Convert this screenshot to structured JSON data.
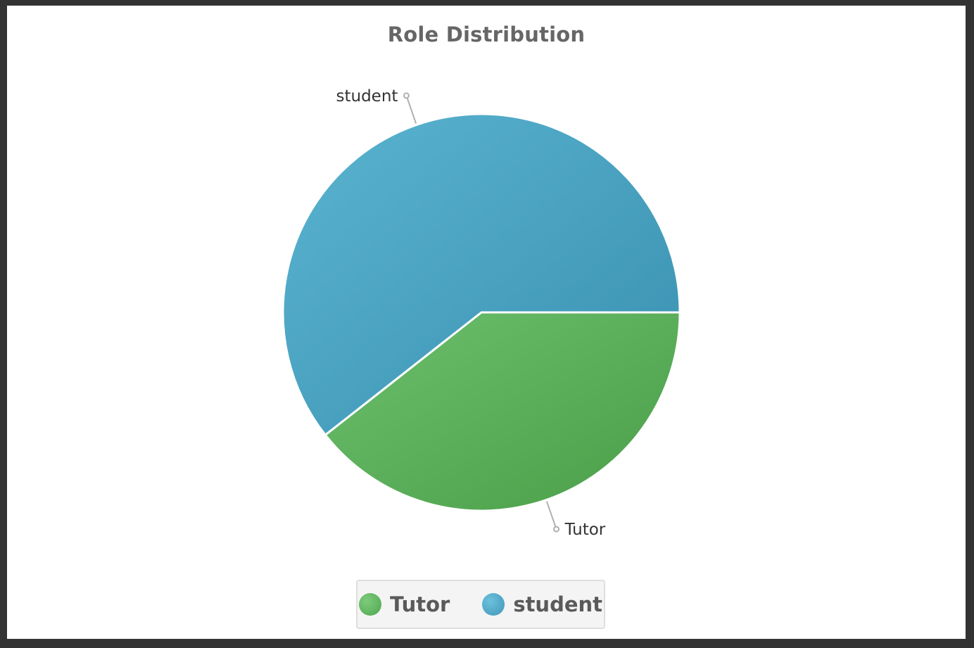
{
  "chart_data": {
    "type": "pie",
    "title": "Role Distribution",
    "slices": [
      {
        "label": "Tutor",
        "value": 39.4,
        "color": "#5aaf5b"
      },
      {
        "label": "student",
        "value": 60.6,
        "color": "#47a1c1"
      }
    ],
    "legend": {
      "position": "bottom",
      "entries": [
        "Tutor",
        "student"
      ]
    }
  },
  "colors": {
    "tutor_gradient_light": "#6cbf6c",
    "tutor_gradient_dark": "#4a9e48",
    "student_gradient_light": "#5ab4d0",
    "student_gradient_dark": "#3990b0",
    "label_text": "#333333",
    "leader_line": "#b0b0b0",
    "slice_border": "#ffffff"
  }
}
